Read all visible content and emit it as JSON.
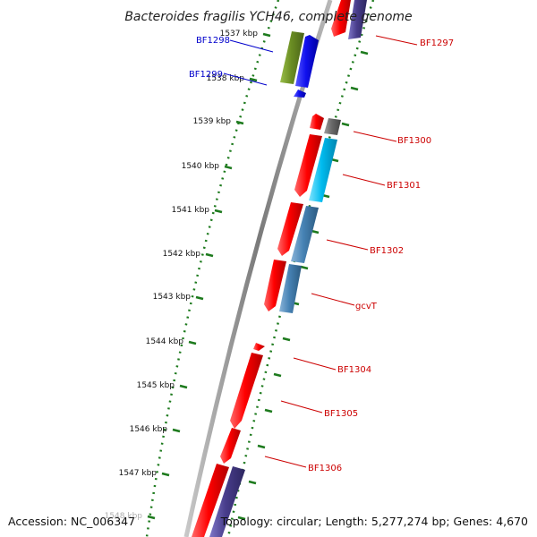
{
  "title": "Bacteroides fragilis YCH46, complete genome",
  "footer": {
    "accession": "Accession: NC_006347",
    "info": "Topology: circular; Length: 5,277,274 bp; Genes: 4,670"
  },
  "ticks": [
    "1537 kbp",
    "1538 kbp",
    "1539 kbp",
    "1540 kbp",
    "1541 kbp",
    "1542 kbp",
    "1543 kbp",
    "1544 kbp",
    "1545 kbp",
    "1546 kbp",
    "1547 kbp",
    "1548 kbp"
  ],
  "colors": {
    "backbone": "#8a8a8a",
    "tick": "#1d7a1d",
    "label_red": "#cc0000",
    "label_blue": "#0000cc",
    "red_gene": "#ee0000",
    "blue_gene": "#1010ee",
    "olive_gene": "#6b8e23",
    "cyan_gene": "#00bbee",
    "steel_gene": "#4682b4",
    "purple_gene": "#483d8b",
    "gray_gene": "#696969"
  },
  "labels": [
    {
      "text": "BF1297",
      "color": "red"
    },
    {
      "text": "BF1298",
      "color": "blue"
    },
    {
      "text": "BF1299",
      "color": "blue"
    },
    {
      "text": "BF1300",
      "color": "red"
    },
    {
      "text": "BF1301",
      "color": "red"
    },
    {
      "text": "BF1302",
      "color": "red"
    },
    {
      "text": "gcvT",
      "color": "red"
    },
    {
      "text": "BF1304",
      "color": "red"
    },
    {
      "text": "BF1305",
      "color": "red"
    },
    {
      "text": "BF1306",
      "color": "red"
    }
  ]
}
